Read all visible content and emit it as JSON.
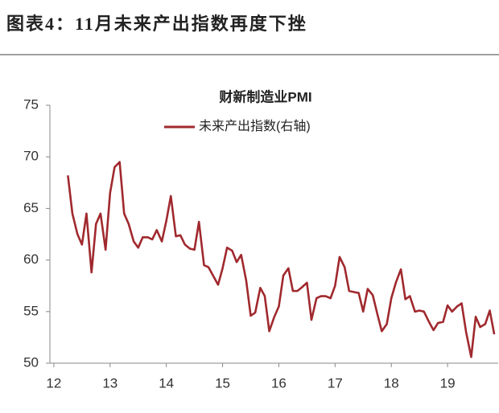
{
  "header": {
    "title": "图表4：11月未来产出指数再度下挫"
  },
  "chart_data": {
    "type": "line",
    "title": "财新制造业PMI",
    "x": [
      12.25,
      12.33,
      12.42,
      12.5,
      12.58,
      12.67,
      12.75,
      12.83,
      12.92,
      13,
      13.08,
      13.17,
      13.25,
      13.33,
      13.42,
      13.5,
      13.58,
      13.67,
      13.75,
      13.83,
      13.92,
      14,
      14.08,
      14.17,
      14.25,
      14.33,
      14.42,
      14.5,
      14.58,
      14.67,
      14.75,
      14.83,
      14.92,
      15,
      15.08,
      15.17,
      15.25,
      15.33,
      15.42,
      15.5,
      15.58,
      15.67,
      15.75,
      15.83,
      15.92,
      16,
      16.08,
      16.17,
      16.25,
      16.33,
      16.42,
      16.5,
      16.58,
      16.67,
      16.75,
      16.83,
      16.92,
      17,
      17.08,
      17.17,
      17.25,
      17.33,
      17.42,
      17.5,
      17.58,
      17.67,
      17.75,
      17.83,
      17.92,
      18,
      18.08,
      18.17,
      18.25,
      18.33,
      18.42,
      18.5,
      18.58,
      18.67,
      18.75,
      18.83,
      18.92,
      19,
      19.08,
      19.17,
      19.25,
      19.33,
      19.42,
      19.5,
      19.58,
      19.67,
      19.75,
      19.83
    ],
    "series": [
      {
        "name": "未来产出指数(右轴)",
        "color": "#a0292e",
        "values": [
          68.2,
          64.5,
          62.5,
          61.5,
          64.5,
          58.8,
          63.5,
          64.5,
          61.0,
          66.5,
          69.0,
          69.5,
          64.5,
          63.5,
          61.8,
          61.2,
          62.2,
          62.2,
          62.0,
          62.9,
          61.8,
          63.8,
          66.2,
          62.3,
          62.4,
          61.5,
          61.1,
          61.0,
          63.7,
          59.5,
          59.3,
          58.5,
          57.6,
          59.2,
          61.2,
          60.9,
          59.8,
          60.5,
          58.0,
          54.6,
          54.9,
          57.3,
          56.5,
          53.1,
          54.5,
          55.5,
          58.5,
          59.2,
          57.0,
          57.0,
          57.4,
          57.8,
          54.2,
          56.3,
          56.5,
          56.5,
          56.3,
          57.5,
          60.3,
          59.3,
          57.0,
          56.9,
          56.8,
          55.0,
          57.2,
          56.6,
          54.8,
          53.1,
          53.8,
          56.3,
          57.8,
          59.1,
          56.2,
          56.5,
          55.0,
          55.1,
          55.0,
          54.0,
          53.2,
          53.9,
          54.0,
          55.6,
          55.0,
          55.5,
          55.8,
          53.0,
          50.6,
          54.5,
          53.5,
          53.8,
          55.1,
          52.8
        ]
      }
    ],
    "xlim": [
      11.93,
      19.9
    ],
    "xticks": [
      12,
      13,
      14,
      15,
      16,
      17,
      18,
      19
    ],
    "ylim": [
      50,
      75
    ],
    "yticks": [
      50,
      55,
      60,
      65,
      70,
      75
    ],
    "legend": "top"
  }
}
